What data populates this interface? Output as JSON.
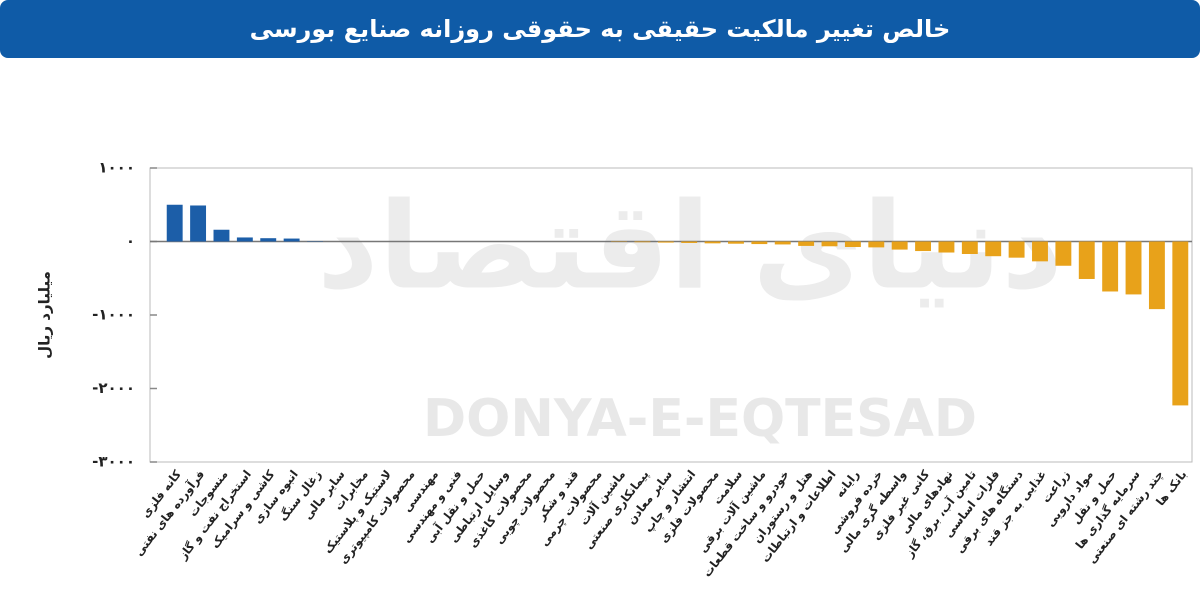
{
  "chart_data": {
    "type": "bar",
    "title": "خالص تغییر مالکیت حقیقی به حقوقی روزانه صنایع بورسی",
    "y_label": "میلیارد ریال",
    "watermark": "DONYA-E-EQTESAD",
    "watermark_fa": "دنیای اقتصاد",
    "positive_color": "#1c5ea8",
    "negative_color": "#e8a21a",
    "categories": [
      "کانه فلزی",
      "فرآورده های نفتی",
      "منسوجات",
      "استخراج نفت و گاز",
      "کاشی و سرامیک",
      "انبوه سازی",
      "زغال سنگ",
      "سایر مالی",
      "مخابرات",
      "لاستیک و پلاستیک",
      "محصولات کامپیوتری",
      "مهندسی",
      "فنی و مهندسی",
      "حمل و نقل آبی",
      "وسایل ارتباطی",
      "محصولات کاغذی",
      "محصولات چوبی",
      "قند و شکر",
      "محصولات چرمی",
      "ماشین آلات",
      "پیمانکاری صنعتی",
      "سایر معادن",
      "انتشار و چاپ",
      "محصولات فلزی",
      "سلامت",
      "ماشین آلات برقی",
      "خودرو و ساخت قطعات",
      "هتل و رستوران",
      "اطلاعات و ارتباطات",
      "رایانه",
      "خرده فروشی",
      "واسطه گری مالی",
      "کانی غیر فلزی",
      "نهادهای مالی",
      "تامین آب، برق، گاز",
      "فلزات اساسی",
      "دستگاه های برقی",
      "غذایی به جز قند",
      "زراعت",
      "مواد دارویی",
      "حمل و نقل",
      "سرمایه گذاری ها",
      "چند رشته ای صنعتی",
      "بانک ها"
    ],
    "values": [
      500,
      490,
      160,
      55,
      45,
      40,
      5,
      0,
      0,
      0,
      0,
      0,
      0,
      0,
      0,
      0,
      0,
      0,
      0,
      -5,
      -10,
      -15,
      -20,
      -25,
      -30,
      -35,
      -40,
      -60,
      -65,
      -75,
      -80,
      -110,
      -130,
      -150,
      -170,
      -200,
      -220,
      -270,
      -330,
      -510,
      -680,
      -720,
      -920,
      -2230
    ],
    "ylim": [
      -3000,
      1000
    ],
    "yticks": [
      {
        "value": -3000,
        "label": "-۳۰۰۰"
      },
      {
        "value": -2000,
        "label": "-۲۰۰۰"
      },
      {
        "value": -1000,
        "label": "-۱۰۰۰"
      },
      {
        "value": 0,
        "label": "۰"
      },
      {
        "value": 1000,
        "label": "۱۰۰۰"
      }
    ]
  }
}
